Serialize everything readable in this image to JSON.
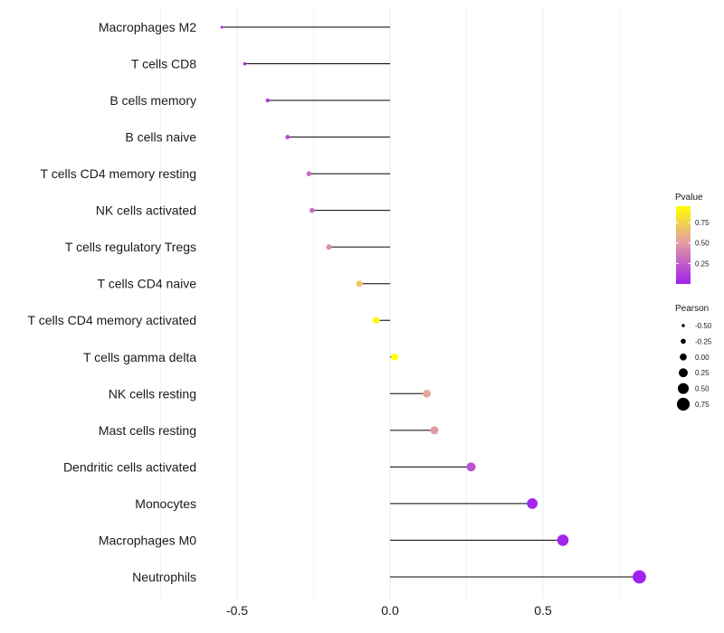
{
  "chart_data": {
    "type": "lollipop",
    "title": "",
    "xlabel": "",
    "ylabel": "",
    "xlim": [
      -0.5,
      0.8
    ],
    "x_ticks": [
      -0.5,
      0.0,
      0.5
    ],
    "x_tick_labels": [
      "-0.5",
      "0.0",
      "0.5"
    ],
    "categories": [
      "Macrophages M2",
      "T cells CD8",
      "B cells memory",
      "B cells naive",
      "T cells CD4 memory resting",
      "NK cells activated",
      "T cells regulatory  Tregs",
      "T cells CD4 naive",
      "T cells CD4 memory activated",
      "T cells gamma delta",
      "NK cells resting",
      "Mast cells resting",
      "Dendritic cells activated",
      "Monocytes",
      "Macrophages M0",
      "Neutrophils"
    ],
    "pearson": [
      -0.55,
      -0.475,
      -0.4,
      -0.335,
      -0.265,
      -0.255,
      -0.2,
      -0.1,
      -0.045,
      0.015,
      0.12,
      0.145,
      0.265,
      0.465,
      0.565,
      0.815
    ],
    "pvalue": [
      0.02,
      0.05,
      0.1,
      0.15,
      0.3,
      0.3,
      0.45,
      0.7,
      0.92,
      0.99,
      0.55,
      0.5,
      0.2,
      0.03,
      0.02,
      0.01
    ],
    "legend": {
      "color_title": "Pvalue",
      "color_ticks": [
        "0.75",
        "0.50",
        "0.25"
      ],
      "color_tick_values": [
        0.75,
        0.5,
        0.25
      ],
      "color_range": [
        0.0,
        0.95
      ],
      "size_title": "Pearson",
      "size_ticks": [
        "-0.50",
        "-0.25",
        "0.00",
        "0.25",
        "0.50",
        "0.75"
      ],
      "size_tick_values": [
        -0.5,
        -0.25,
        0.0,
        0.25,
        0.5,
        0.75
      ],
      "position": "right"
    },
    "colors": {
      "low": "#a020f0",
      "mid": "#e6a0a0",
      "high": "#ffff00",
      "stem": "#000000",
      "grid": "#ebebeb"
    }
  }
}
